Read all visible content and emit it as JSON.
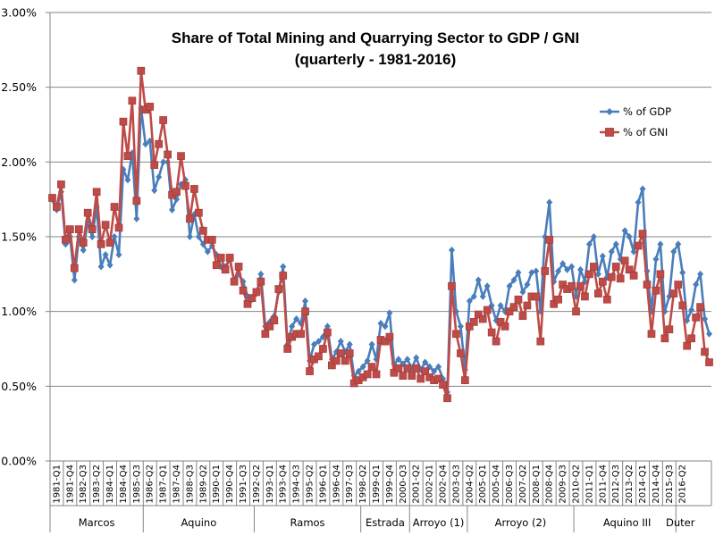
{
  "chart_data": {
    "type": "line",
    "title": "Share of Total Mining and Quarrying Sector to GDP / GNI",
    "subtitle": "(quarterly - 1981-2016)",
    "xlabel": "",
    "ylabel": "",
    "ylim": [
      0,
      0.03
    ],
    "y_ticks": [
      "0.00%",
      "0.50%",
      "1.00%",
      "1.50%",
      "2.00%",
      "2.50%",
      "3.00%"
    ],
    "y_tick_values": [
      0,
      0.005,
      0.01,
      0.015,
      0.02,
      0.025,
      0.03
    ],
    "grid": true,
    "legend_position": "top-right",
    "x_tick_labels": [
      "1981-Q1",
      "1981-Q4",
      "1982-Q3",
      "1983-Q2",
      "1984-Q1",
      "1984-Q4",
      "1985-Q3",
      "1986-Q2",
      "1987-Q1",
      "1987-Q4",
      "1988-Q3",
      "1989-Q2",
      "1990-Q1",
      "1990-Q4",
      "1991-Q3",
      "1992-Q2",
      "1993-Q1",
      "1993-Q4",
      "1994-Q3",
      "1995-Q2",
      "1996-Q1",
      "1996-Q4",
      "1997-Q3",
      "1998-Q2",
      "1999-Q1",
      "1999-Q4",
      "2000-Q3",
      "2001-Q2",
      "2002-Q1",
      "2002-Q4",
      "2003-Q3",
      "2004-Q2",
      "2005-Q1",
      "2005-Q4",
      "2006-Q3",
      "2007-Q2",
      "2008-Q1",
      "2008-Q4",
      "2009-Q3",
      "2010-Q2",
      "2011-Q1",
      "2011-Q4",
      "2012-Q3",
      "2013-Q2",
      "2014-Q1",
      "2014-Q4",
      "2015-Q3",
      "2016-Q2"
    ],
    "x_tick_step_quarters": 3,
    "start": "1981-Q1",
    "groups": [
      {
        "label": "Marcos",
        "start_index": 0,
        "end_index": 20
      },
      {
        "label": "Aquino",
        "start_index": 21,
        "end_index": 45
      },
      {
        "label": "Ramos",
        "start_index": 46,
        "end_index": 69
      },
      {
        "label": "Estrada",
        "start_index": 70,
        "end_index": 80
      },
      {
        "label": "Arroyo (1)",
        "start_index": 81,
        "end_index": 93
      },
      {
        "label": "Arroyo (2)",
        "start_index": 94,
        "end_index": 117
      },
      {
        "label": "Aquino III",
        "start_index": 118,
        "end_index": 141
      },
      {
        "label": "Duter",
        "start_index": 141,
        "end_index": 142
      }
    ],
    "series": [
      {
        "name": "% of GDP",
        "color": "#4a7ebb",
        "marker": "diamond",
        "values": [
          0.0175,
          0.0168,
          0.018,
          0.0145,
          0.015,
          0.0121,
          0.015,
          0.0141,
          0.016,
          0.015,
          0.017,
          0.013,
          0.0138,
          0.0131,
          0.015,
          0.0138,
          0.0195,
          0.0188,
          0.0206,
          0.0162,
          0.0236,
          0.0212,
          0.0214,
          0.0181,
          0.019,
          0.02,
          0.02,
          0.0168,
          0.0175,
          0.0185,
          0.0188,
          0.015,
          0.0165,
          0.015,
          0.0145,
          0.014,
          0.0144,
          0.0138,
          0.013,
          0.013,
          0.0135,
          0.012,
          0.0125,
          0.012,
          0.011,
          0.0108,
          0.0112,
          0.0125,
          0.009,
          0.0093,
          0.0097,
          0.0113,
          0.013,
          0.0078,
          0.009,
          0.0095,
          0.0092,
          0.0107,
          0.0067,
          0.0078,
          0.008,
          0.0083,
          0.009,
          0.0068,
          0.0073,
          0.008,
          0.0073,
          0.0078,
          0.0057,
          0.006,
          0.0063,
          0.0067,
          0.0078,
          0.0068,
          0.0092,
          0.009,
          0.0099,
          0.0065,
          0.0068,
          0.0065,
          0.0068,
          0.0062,
          0.0069,
          0.0061,
          0.0066,
          0.0063,
          0.006,
          0.0063,
          0.0055,
          0.0046,
          0.0141,
          0.01,
          0.009,
          0.0061,
          0.0107,
          0.011,
          0.0121,
          0.011,
          0.0117,
          0.0104,
          0.0094,
          0.0104,
          0.01,
          0.0117,
          0.0121,
          0.0126,
          0.0113,
          0.0118,
          0.0126,
          0.0127,
          0.01,
          0.015,
          0.0173,
          0.012,
          0.0127,
          0.0132,
          0.0128,
          0.013,
          0.011,
          0.0128,
          0.012,
          0.0145,
          0.015,
          0.0125,
          0.0137,
          0.0123,
          0.014,
          0.0145,
          0.0135,
          0.0154,
          0.015,
          0.014,
          0.0173,
          0.0182,
          0.0127,
          0.01,
          0.0135,
          0.0145,
          0.01,
          0.011,
          0.014,
          0.0145,
          0.0126,
          0.0094,
          0.0101,
          0.0118,
          0.0125,
          0.0095,
          0.0085
        ]
      },
      {
        "name": "% of GNI",
        "color": "#be4b48",
        "marker": "square",
        "values": [
          0.0176,
          0.017,
          0.0185,
          0.0148,
          0.0155,
          0.0129,
          0.0155,
          0.0146,
          0.0166,
          0.0155,
          0.018,
          0.0145,
          0.0158,
          0.0146,
          0.017,
          0.0156,
          0.0227,
          0.0204,
          0.0241,
          0.0174,
          0.0261,
          0.0235,
          0.0237,
          0.0198,
          0.0212,
          0.0228,
          0.0205,
          0.0178,
          0.018,
          0.0204,
          0.0184,
          0.0162,
          0.0182,
          0.0166,
          0.0154,
          0.0148,
          0.0148,
          0.0131,
          0.0136,
          0.0128,
          0.0136,
          0.012,
          0.013,
          0.0114,
          0.0105,
          0.0109,
          0.0113,
          0.012,
          0.0085,
          0.009,
          0.0094,
          0.0115,
          0.0124,
          0.0075,
          0.0083,
          0.0085,
          0.0085,
          0.01,
          0.006,
          0.0068,
          0.007,
          0.0075,
          0.0086,
          0.0064,
          0.0067,
          0.0072,
          0.0067,
          0.0072,
          0.0052,
          0.0054,
          0.0056,
          0.0058,
          0.0063,
          0.0058,
          0.0081,
          0.008,
          0.0083,
          0.0059,
          0.0062,
          0.0057,
          0.0062,
          0.0057,
          0.0062,
          0.0055,
          0.006,
          0.0056,
          0.0054,
          0.0055,
          0.0051,
          0.0042,
          0.0117,
          0.0085,
          0.0072,
          0.0054,
          0.009,
          0.0093,
          0.0098,
          0.0095,
          0.0101,
          0.0086,
          0.008,
          0.0093,
          0.009,
          0.01,
          0.0103,
          0.0108,
          0.0097,
          0.0104,
          0.011,
          0.011,
          0.008,
          0.0127,
          0.0148,
          0.0105,
          0.0108,
          0.0118,
          0.0115,
          0.0117,
          0.01,
          0.0117,
          0.011,
          0.0125,
          0.013,
          0.0112,
          0.012,
          0.0108,
          0.0123,
          0.013,
          0.0122,
          0.0134,
          0.0128,
          0.0124,
          0.0144,
          0.0152,
          0.0118,
          0.0085,
          0.0114,
          0.0125,
          0.0082,
          0.0088,
          0.0112,
          0.0118,
          0.0104,
          0.0077,
          0.0082,
          0.0096,
          0.0103,
          0.0073,
          0.0066
        ]
      }
    ]
  }
}
